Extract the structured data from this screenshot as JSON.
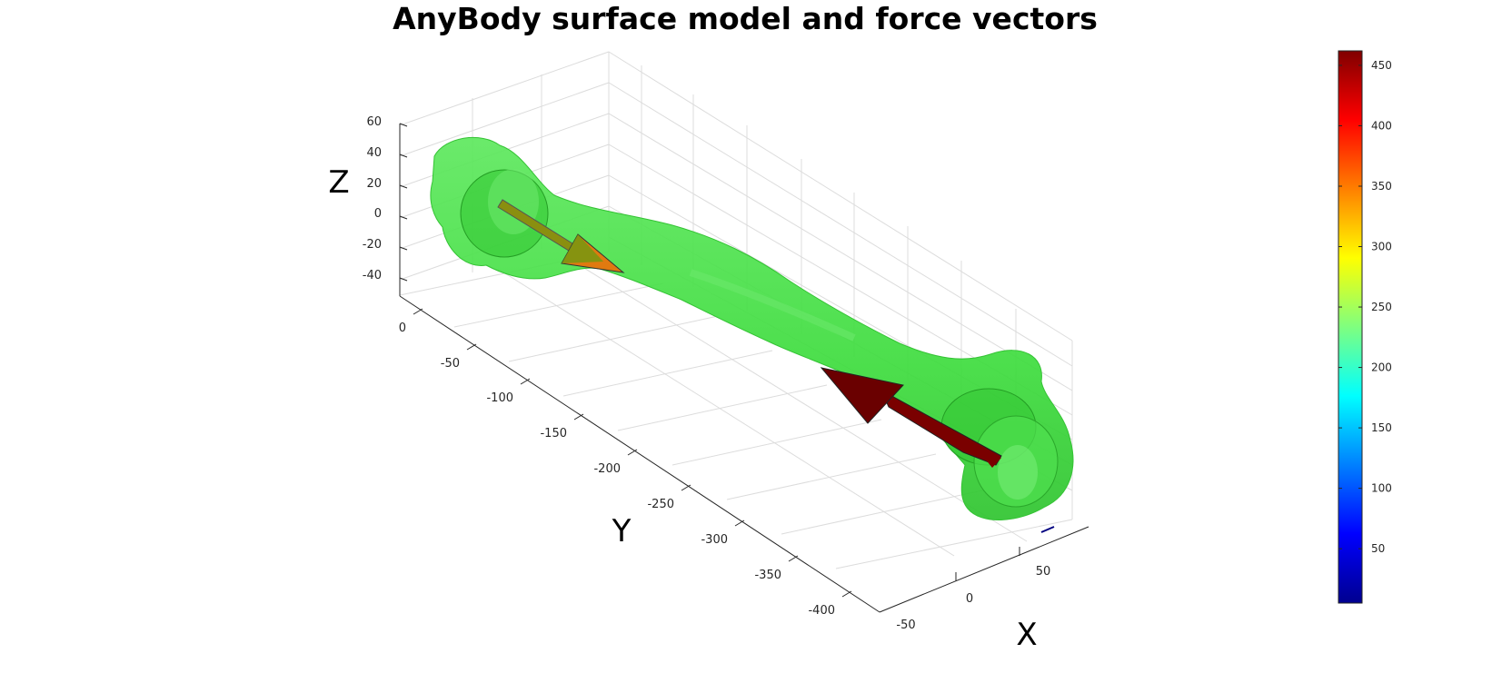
{
  "chart_data": {
    "type": "surface-3d",
    "title": "AnyBody surface model and force vectors",
    "xlabel": "X",
    "ylabel": "Y",
    "zlabel": "Z",
    "x_ticks": [
      "-50",
      "0",
      "50"
    ],
    "y_ticks": [
      "0",
      "-50",
      "-100",
      "-150",
      "-200",
      "-250",
      "-300",
      "-350",
      "-400"
    ],
    "z_ticks": [
      "60",
      "40",
      "20",
      "0",
      "-20",
      "-40"
    ],
    "xlim": [
      -60,
      75
    ],
    "ylim": [
      -420,
      20
    ],
    "zlim": [
      -50,
      60
    ],
    "grid": true,
    "surface": {
      "name": "bone surface",
      "color_value": 230,
      "color": "#3ddc3d"
    },
    "force_vectors": [
      {
        "location": "proximal",
        "magnitude": 330,
        "color": "#e07a10"
      },
      {
        "location": "distal",
        "magnitude": 462,
        "color": "#7a0000"
      }
    ],
    "colorbar": {
      "colormap": "jet",
      "range": [
        5,
        462
      ],
      "ticks": [
        "450",
        "400",
        "350",
        "300",
        "250",
        "200",
        "150",
        "100",
        "50"
      ],
      "tick_values": [
        450,
        400,
        350,
        300,
        250,
        200,
        150,
        100,
        50
      ]
    }
  }
}
